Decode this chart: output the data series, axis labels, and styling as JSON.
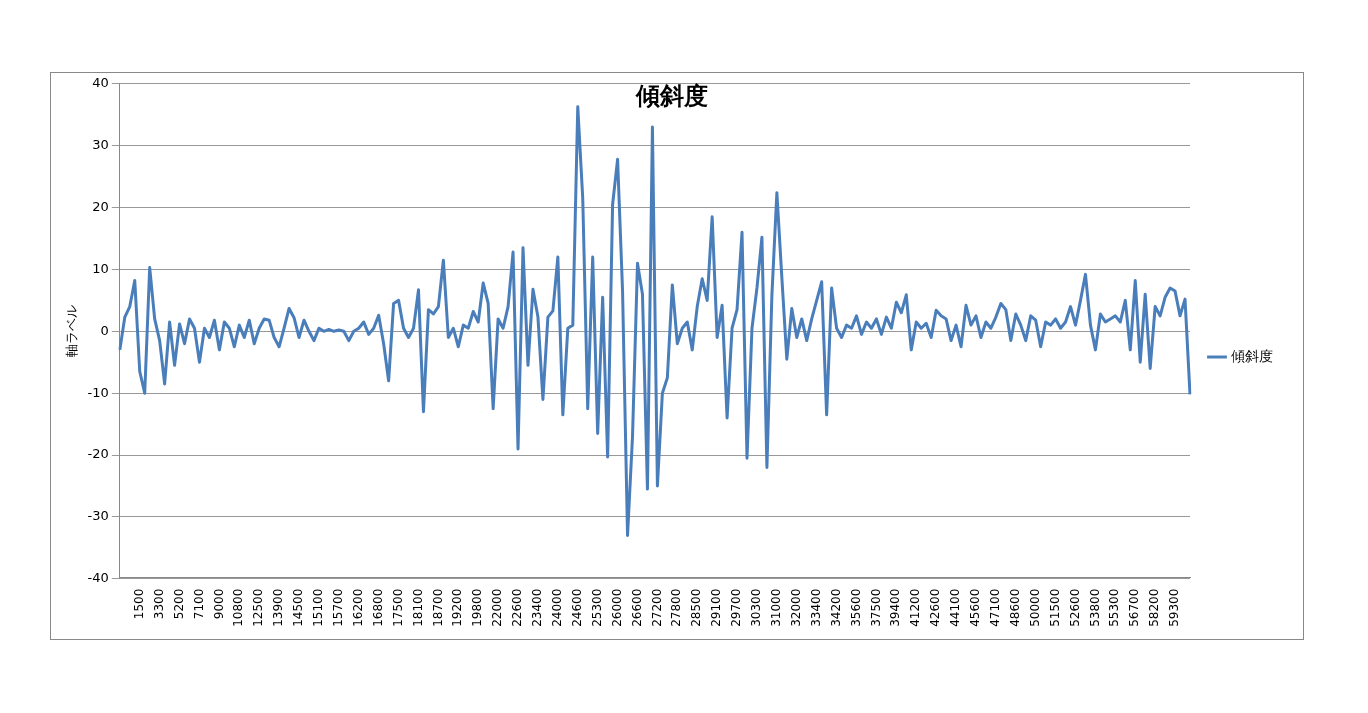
{
  "chart_data": {
    "type": "line",
    "title": "傾斜度",
    "ylabel": "軸ラベル",
    "categories": [
      null,
      null,
      null,
      null,
      "1500",
      null,
      null,
      null,
      "3300",
      null,
      null,
      null,
      "5200",
      null,
      null,
      null,
      "7100",
      null,
      null,
      null,
      "9000",
      null,
      null,
      null,
      "10800",
      null,
      null,
      null,
      "12500",
      null,
      null,
      null,
      "13900",
      null,
      null,
      null,
      "14500",
      null,
      null,
      null,
      "15100",
      null,
      null,
      null,
      "15700",
      null,
      null,
      null,
      "16200",
      null,
      null,
      null,
      "16800",
      null,
      null,
      null,
      "17500",
      null,
      null,
      null,
      "18100",
      null,
      null,
      null,
      "18700",
      null,
      null,
      null,
      "19200",
      null,
      null,
      null,
      "19800",
      null,
      null,
      null,
      "22000",
      null,
      null,
      null,
      "22600",
      null,
      null,
      null,
      "23400",
      null,
      null,
      null,
      "24000",
      null,
      null,
      null,
      "24600",
      null,
      null,
      null,
      "25300",
      null,
      null,
      null,
      "26000",
      null,
      null,
      null,
      "26600",
      null,
      null,
      null,
      "27200",
      null,
      null,
      null,
      "27800",
      null,
      null,
      null,
      "28500",
      null,
      null,
      null,
      "29100",
      null,
      null,
      null,
      "29700",
      null,
      null,
      null,
      "30300",
      null,
      null,
      null,
      "31000",
      null,
      null,
      null,
      "32000",
      null,
      null,
      null,
      "33400",
      null,
      null,
      null,
      "34200",
      null,
      null,
      null,
      "35600",
      null,
      null,
      null,
      "37500",
      null,
      null,
      null,
      "39400",
      null,
      null,
      null,
      "41200",
      null,
      null,
      null,
      "42600",
      null,
      null,
      null,
      "44100",
      null,
      null,
      null,
      "45600",
      null,
      null,
      null,
      "47100",
      null,
      null,
      null,
      "48600",
      null,
      null,
      null,
      "50000",
      null,
      null,
      null,
      "51500",
      null,
      null,
      null,
      "52600",
      null,
      null,
      null,
      "53800",
      null,
      null,
      null,
      "55300",
      null,
      null,
      null,
      "56700",
      null,
      null,
      null,
      "58200",
      null,
      null,
      null,
      "59300",
      null,
      null,
      null
    ],
    "series": [
      {
        "name": "傾斜度",
        "color": "#4a7ebb",
        "values": [
          -3,
          2.3,
          4,
          8.2,
          -6.5,
          -10,
          10.3,
          2,
          -1.5,
          -8.5,
          1.5,
          -5.5,
          1.2,
          -2,
          2,
          0.5,
          -5,
          0.5,
          -1,
          1.8,
          -3,
          1.5,
          0.5,
          -2.5,
          1,
          -1,
          1.8,
          -2,
          0.5,
          2,
          1.8,
          -1,
          -2.5,
          0.5,
          3.7,
          2.2,
          -1,
          1.8,
          0,
          -1.5,
          0.5,
          0,
          0.3,
          0,
          0.2,
          0,
          -1.5,
          0,
          0.5,
          1.5,
          -0.5,
          0.5,
          2.6,
          -2,
          -8,
          4.5,
          5,
          0.5,
          -1,
          0.5,
          6.7,
          -13,
          3.5,
          2.8,
          4,
          11.5,
          -1,
          0.5,
          -2.5,
          1,
          0.5,
          3.2,
          1.5,
          7.8,
          4.5,
          -12.5,
          2,
          0.5,
          4,
          12.8,
          -19,
          13.5,
          -5.5,
          6.8,
          2.3,
          -11,
          2.3,
          3.3,
          12,
          -13.5,
          0.5,
          1,
          36.3,
          21.5,
          -12.5,
          12,
          -16.5,
          5.5,
          -20.3,
          20.5,
          27.8,
          6.5,
          -33,
          -17,
          11,
          6,
          -25.5,
          33,
          -25,
          -10,
          -7.5,
          7.5,
          -2,
          0.5,
          1.5,
          -3,
          4,
          8.5,
          5,
          18.5,
          -1,
          4.2,
          -14,
          0.5,
          3.5,
          16,
          -20.5,
          0.5,
          7,
          15.2,
          -22,
          5.8,
          22.4,
          8.7,
          -4.5,
          3.7,
          -1,
          2,
          -1.5,
          2,
          5,
          8,
          -13.5,
          7,
          0.5,
          -1,
          1,
          0.5,
          2.5,
          -0.5,
          1.5,
          0.5,
          2,
          -0.5,
          2.3,
          0.5,
          4.7,
          3,
          5.9,
          -3,
          1.5,
          0.5,
          1.3,
          -1,
          3.4,
          2.5,
          2,
          -1.5,
          1,
          -2.5,
          4.2,
          1,
          2.5,
          -1,
          1.5,
          0.5,
          2.3,
          4.5,
          3.5,
          -1.5,
          2.8,
          1,
          -1.5,
          2.5,
          1.8,
          -2.5,
          1.5,
          1,
          2,
          0.5,
          1.5,
          4,
          1,
          5,
          9.2,
          1,
          -3,
          2.8,
          1.5,
          2,
          2.5,
          1.5,
          5,
          -3,
          8.2,
          -5,
          6,
          -6,
          4,
          2.5,
          5.5,
          7,
          6.5,
          2.5,
          5.2,
          -10.2
        ]
      }
    ],
    "ylim": [
      -40,
      40
    ],
    "yticks": [
      -40,
      -30,
      -20,
      -10,
      0,
      10,
      20,
      30,
      40
    ],
    "grid": "y",
    "legend": "right",
    "marker": "none",
    "line_style": "solid"
  }
}
